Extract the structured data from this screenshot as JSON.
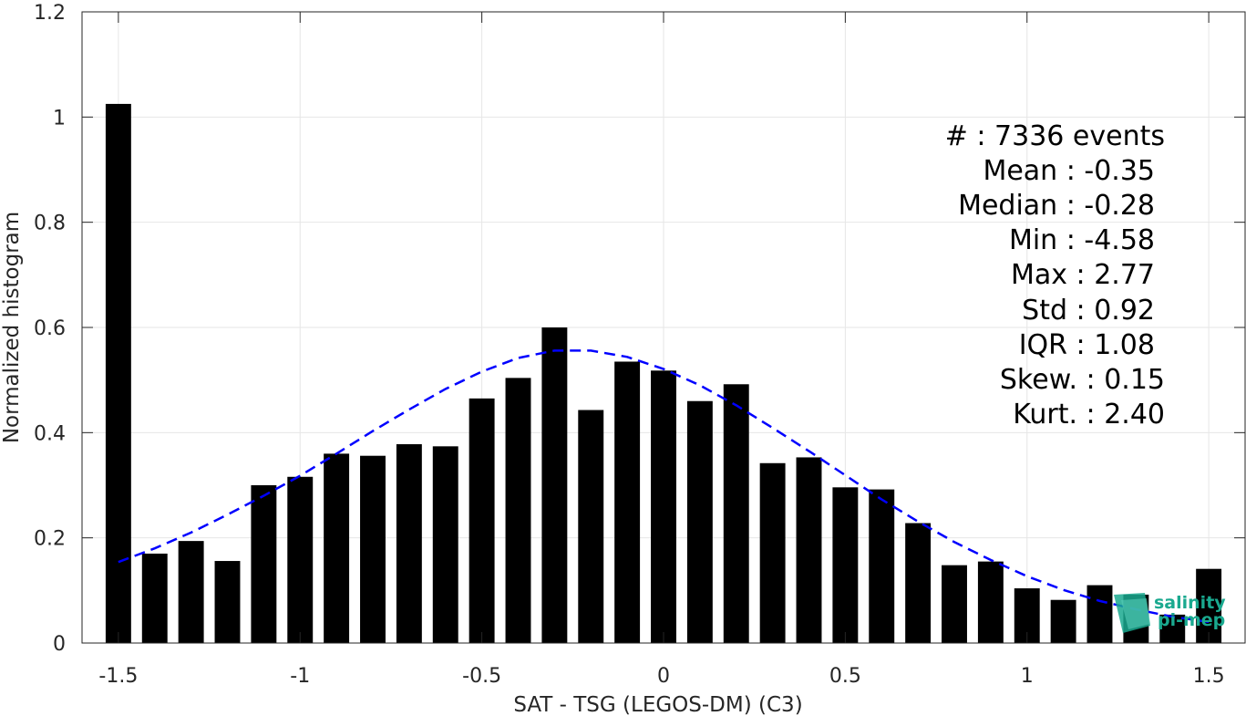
{
  "chart_data": {
    "type": "bar",
    "xlabel": "SAT - TSG (LEGOS-DM) (C3)",
    "ylabel": "Normalized histogram",
    "xlim": [
      -1.6,
      1.6
    ],
    "ylim": [
      0,
      1.2
    ],
    "xticks": [
      -1.5,
      -1,
      -0.5,
      0,
      0.5,
      1,
      1.5
    ],
    "xtick_labels": [
      "-1.5",
      "-1",
      "-0.5",
      "0",
      "0.5",
      "1",
      "1.5"
    ],
    "yticks": [
      0,
      0.2,
      0.4,
      0.6,
      0.8,
      1,
      1.2
    ],
    "ytick_labels": [
      "0",
      "0.2",
      "0.4",
      "0.6",
      "0.8",
      "1",
      "1.2"
    ],
    "grid": true,
    "bar_color": "#000000",
    "bar_width": 0.07,
    "bars": {
      "x": [
        -1.5,
        -1.4,
        -1.3,
        -1.2,
        -1.1,
        -1.0,
        -0.9,
        -0.8,
        -0.7,
        -0.6,
        -0.5,
        -0.4,
        -0.3,
        -0.2,
        -0.1,
        0.0,
        0.1,
        0.2,
        0.3,
        0.4,
        0.5,
        0.6,
        0.7,
        0.8,
        0.9,
        1.0,
        1.1,
        1.2,
        1.3,
        1.4,
        1.5
      ],
      "values": [
        1.025,
        0.17,
        0.194,
        0.156,
        0.3,
        0.316,
        0.36,
        0.356,
        0.378,
        0.374,
        0.465,
        0.504,
        0.6,
        0.443,
        0.535,
        0.518,
        0.46,
        0.492,
        0.342,
        0.353,
        0.296,
        0.292,
        0.228,
        0.148,
        0.155,
        0.104,
        0.082,
        0.11,
        0.092,
        0.054,
        0.141
      ]
    },
    "fit_curve": {
      "style": "dashed",
      "color": "#0000ff",
      "x": [
        -1.5,
        -1.4,
        -1.3,
        -1.2,
        -1.1,
        -1.0,
        -0.9,
        -0.8,
        -0.7,
        -0.6,
        -0.5,
        -0.4,
        -0.3,
        -0.2,
        -0.1,
        0.0,
        0.1,
        0.2,
        0.3,
        0.4,
        0.5,
        0.6,
        0.7,
        0.8,
        0.9,
        1.0,
        1.1,
        1.2,
        1.3,
        1.4,
        1.5
      ],
      "y": [
        0.154,
        0.18,
        0.21,
        0.244,
        0.28,
        0.318,
        0.36,
        0.403,
        0.444,
        0.483,
        0.516,
        0.542,
        0.556,
        0.556,
        0.544,
        0.521,
        0.49,
        0.452,
        0.409,
        0.365,
        0.319,
        0.273,
        0.231,
        0.192,
        0.158,
        0.127,
        0.101,
        0.08,
        0.064,
        0.05,
        0.04
      ]
    }
  },
  "stats": [
    {
      "label": "#  : 7336 events"
    },
    {
      "label": "Mean : -0.35"
    },
    {
      "label": "Median : -0.28"
    },
    {
      "label": "Min : -4.58"
    },
    {
      "label": "Max : 2.77"
    },
    {
      "label": "Std : 0.92"
    },
    {
      "label": "IQR : 1.08"
    },
    {
      "label": "Skew. : 0.15"
    },
    {
      "label": "Kurt. : 2.40"
    }
  ],
  "logo": {
    "line1": "salinity",
    "line2": "pi-mep",
    "color": "#1aa98f"
  }
}
